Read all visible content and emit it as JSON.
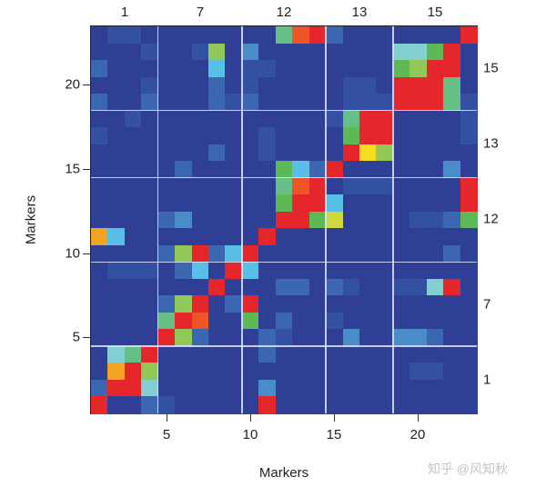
{
  "chart_data": {
    "type": "heatmap",
    "title": "",
    "xlabel": "Markers",
    "ylabel": "Markers",
    "n": 23,
    "x_ticks": [
      5,
      10,
      15,
      20
    ],
    "y_ticks": [
      5,
      10,
      15,
      20
    ],
    "grid": false,
    "groups": [
      {
        "label": "1",
        "start": 1,
        "end": 4
      },
      {
        "label": "7",
        "start": 5,
        "end": 9
      },
      {
        "label": "12",
        "start": 10,
        "end": 14
      },
      {
        "label": "13",
        "start": 15,
        "end": 18
      },
      {
        "label": "15",
        "start": 19,
        "end": 23
      }
    ],
    "color_scale": {
      "D": "#2f3f95",
      "b1": "#3450a2",
      "b2": "#3b66b0",
      "b3": "#4a8cca",
      "C": "#58bfe6",
      "LC": "#82d0d2",
      "T": "#66bf85",
      "G": "#5cb955",
      "LG": "#92c858",
      "YG": "#cdd93c",
      "Y": "#f6dc1e",
      "O": "#f2a322",
      "OR": "#ee5526",
      "R": "#e5262b"
    },
    "level_order_low_to_high": [
      "D",
      "b1",
      "b2",
      "b3",
      "C",
      "LC",
      "T",
      "G",
      "LG",
      "YG",
      "Y",
      "O",
      "OR",
      "R"
    ],
    "rows_top_to_bottom_markers_23_to_1": [
      [
        "D",
        "b1",
        "b1",
        "D",
        "D",
        "D",
        "D",
        "D",
        "D",
        "D",
        "D",
        "T",
        "OR",
        "R",
        "b2",
        "D",
        "D",
        "D",
        "D",
        "D",
        "D",
        "D",
        "R"
      ],
      [
        "D",
        "D",
        "D",
        "b1",
        "D",
        "D",
        "b1",
        "LG",
        "D",
        "b3",
        "D",
        "D",
        "D",
        "D",
        "D",
        "D",
        "D",
        "D",
        "LC",
        "LC",
        "G",
        "R",
        "D"
      ],
      [
        "b2",
        "D",
        "D",
        "D",
        "D",
        "D",
        "D",
        "C",
        "D",
        "b1",
        "b1",
        "D",
        "D",
        "D",
        "D",
        "D",
        "D",
        "D",
        "G",
        "LG",
        "R",
        "R",
        "D"
      ],
      [
        "D",
        "D",
        "D",
        "b1",
        "D",
        "D",
        "D",
        "b2",
        "D",
        "b1",
        "D",
        "D",
        "D",
        "D",
        "D",
        "b1",
        "b1",
        "D",
        "R",
        "R",
        "R",
        "T",
        "D"
      ],
      [
        "b2",
        "D",
        "D",
        "b2",
        "D",
        "D",
        "D",
        "b2",
        "b1",
        "b2",
        "D",
        "D",
        "D",
        "D",
        "D",
        "b1",
        "b1",
        "b1",
        "R",
        "R",
        "R",
        "T",
        "b1"
      ],
      [
        "D",
        "D",
        "b1",
        "D",
        "D",
        "D",
        "D",
        "D",
        "D",
        "D",
        "D",
        "D",
        "D",
        "D",
        "b1",
        "T",
        "R",
        "R",
        "D",
        "D",
        "D",
        "D",
        "b1"
      ],
      [
        "b1",
        "D",
        "D",
        "D",
        "D",
        "D",
        "D",
        "D",
        "D",
        "D",
        "b1",
        "D",
        "D",
        "D",
        "D",
        "G",
        "R",
        "R",
        "D",
        "D",
        "D",
        "D",
        "b1"
      ],
      [
        "D",
        "D",
        "D",
        "D",
        "D",
        "D",
        "D",
        "b2",
        "D",
        "D",
        "b1",
        "D",
        "D",
        "D",
        "D",
        "R",
        "Y",
        "LG",
        "D",
        "D",
        "D",
        "D",
        "D"
      ],
      [
        "D",
        "D",
        "D",
        "D",
        "D",
        "b2",
        "D",
        "D",
        "D",
        "D",
        "D",
        "G",
        "C",
        "b2",
        "R",
        "D",
        "D",
        "D",
        "D",
        "D",
        "D",
        "b3",
        "D"
      ],
      [
        "D",
        "D",
        "D",
        "D",
        "D",
        "D",
        "D",
        "D",
        "D",
        "D",
        "D",
        "T",
        "OR",
        "R",
        "D",
        "b1",
        "b1",
        "b1",
        "D",
        "D",
        "D",
        "D",
        "R"
      ],
      [
        "D",
        "D",
        "D",
        "D",
        "D",
        "D",
        "D",
        "D",
        "D",
        "D",
        "D",
        "G",
        "R",
        "R",
        "C",
        "D",
        "D",
        "D",
        "D",
        "D",
        "D",
        "D",
        "R"
      ],
      [
        "D",
        "D",
        "D",
        "D",
        "b2",
        "b3",
        "D",
        "D",
        "D",
        "D",
        "D",
        "R",
        "R",
        "G",
        "YG",
        "D",
        "D",
        "D",
        "D",
        "b1",
        "b1",
        "b2",
        "G"
      ],
      [
        "O",
        "C",
        "D",
        "D",
        "D",
        "D",
        "D",
        "D",
        "D",
        "D",
        "R",
        "D",
        "D",
        "D",
        "D",
        "D",
        "D",
        "D",
        "D",
        "D",
        "D",
        "D",
        "D"
      ],
      [
        "D",
        "D",
        "D",
        "D",
        "b2",
        "LG",
        "R",
        "b2",
        "C",
        "R",
        "D",
        "D",
        "D",
        "D",
        "D",
        "D",
        "D",
        "D",
        "D",
        "D",
        "D",
        "b2",
        "D"
      ],
      [
        "D",
        "b1",
        "b1",
        "b1",
        "D",
        "b2",
        "C",
        "D",
        "R",
        "C",
        "D",
        "D",
        "D",
        "D",
        "D",
        "D",
        "D",
        "D",
        "D",
        "D",
        "D",
        "D",
        "D"
      ],
      [
        "D",
        "D",
        "D",
        "D",
        "D",
        "D",
        "D",
        "R",
        "D",
        "D",
        "D",
        "b2",
        "b2",
        "D",
        "b2",
        "b1",
        "D",
        "D",
        "b1",
        "b1",
        "LC",
        "R",
        "D"
      ],
      [
        "D",
        "D",
        "D",
        "D",
        "b2",
        "LG",
        "R",
        "D",
        "b2",
        "R",
        "D",
        "D",
        "D",
        "D",
        "D",
        "D",
        "D",
        "D",
        "D",
        "D",
        "D",
        "D",
        "D"
      ],
      [
        "D",
        "D",
        "D",
        "D",
        "T",
        "R",
        "OR",
        "D",
        "D",
        "G",
        "D",
        "b2",
        "D",
        "D",
        "b1",
        "D",
        "D",
        "D",
        "D",
        "D",
        "D",
        "D",
        "D"
      ],
      [
        "D",
        "D",
        "D",
        "D",
        "R",
        "LG",
        "b2",
        "D",
        "D",
        "D",
        "b2",
        "b1",
        "D",
        "D",
        "D",
        "b3",
        "D",
        "D",
        "b3",
        "b3",
        "b2",
        "D",
        "D"
      ],
      [
        "D",
        "LC",
        "T",
        "R",
        "D",
        "D",
        "D",
        "D",
        "D",
        "D",
        "b2",
        "D",
        "D",
        "D",
        "D",
        "D",
        "D",
        "D",
        "D",
        "D",
        "D",
        "D",
        "D"
      ],
      [
        "D",
        "O",
        "R",
        "LG",
        "D",
        "D",
        "D",
        "D",
        "D",
        "D",
        "D",
        "D",
        "D",
        "D",
        "D",
        "D",
        "D",
        "D",
        "D",
        "b1",
        "b1",
        "D",
        "D"
      ],
      [
        "b2",
        "R",
        "R",
        "LC",
        "D",
        "D",
        "D",
        "D",
        "D",
        "D",
        "b3",
        "D",
        "D",
        "D",
        "D",
        "D",
        "D",
        "D",
        "D",
        "D",
        "D",
        "D",
        "D"
      ],
      [
        "R",
        "D",
        "D",
        "b2",
        "b1",
        "D",
        "D",
        "D",
        "D",
        "D",
        "R",
        "D",
        "D",
        "D",
        "D",
        "D",
        "D",
        "D",
        "D",
        "D",
        "D",
        "D",
        "D"
      ]
    ]
  },
  "axes": {
    "xlabel": "Markers",
    "ylabel": "Markers",
    "x_ticks": [
      "5",
      "10",
      "15",
      "20"
    ],
    "y_ticks": [
      "5",
      "10",
      "15",
      "20"
    ],
    "top_group_labels": [
      "1",
      "7",
      "12",
      "13",
      "15"
    ],
    "right_group_labels": [
      "15",
      "13",
      "12",
      "7",
      "1"
    ]
  },
  "watermark": "知乎 @风知秋"
}
